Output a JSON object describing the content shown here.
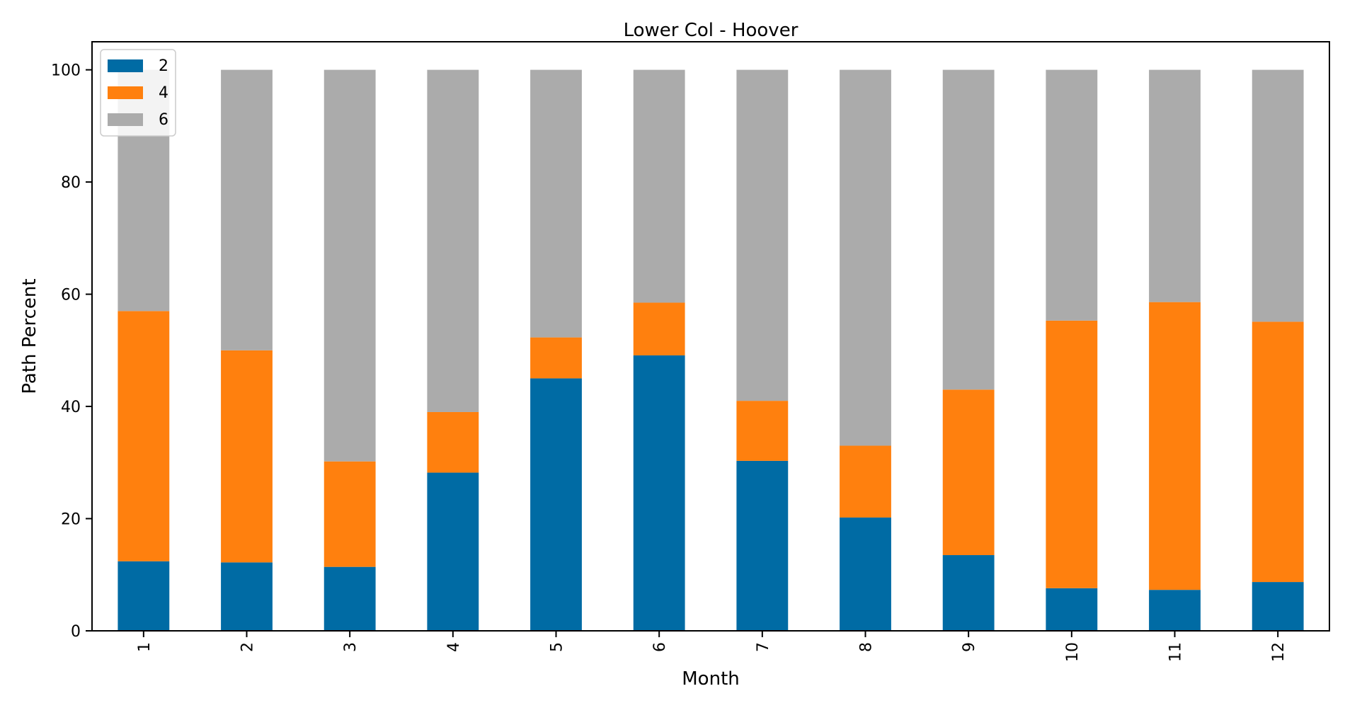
{
  "chart_data": {
    "type": "bar",
    "stacked": true,
    "title": "Lower Col - Hoover",
    "xlabel": "Month",
    "ylabel": "Path Percent",
    "categories": [
      "1",
      "2",
      "3",
      "4",
      "5",
      "6",
      "7",
      "8",
      "9",
      "10",
      "11",
      "12"
    ],
    "ylim": [
      0,
      105
    ],
    "yticks": [
      0,
      20,
      40,
      60,
      80,
      100
    ],
    "legend_position": "top-left",
    "series": [
      {
        "name": "2",
        "color": "#006ba4",
        "values": [
          12.4,
          12.2,
          11.4,
          28.2,
          45.0,
          49.1,
          30.3,
          20.2,
          13.5,
          7.6,
          7.3,
          8.7
        ]
      },
      {
        "name": "4",
        "color": "#ff800e",
        "values": [
          44.6,
          37.8,
          18.8,
          10.8,
          7.3,
          9.4,
          10.7,
          12.8,
          29.5,
          47.7,
          51.3,
          46.4
        ]
      },
      {
        "name": "6",
        "color": "#ababab",
        "values": [
          43.0,
          50.0,
          69.8,
          61.0,
          47.7,
          41.5,
          59.0,
          67.0,
          57.0,
          44.7,
          41.4,
          44.9
        ]
      }
    ]
  }
}
